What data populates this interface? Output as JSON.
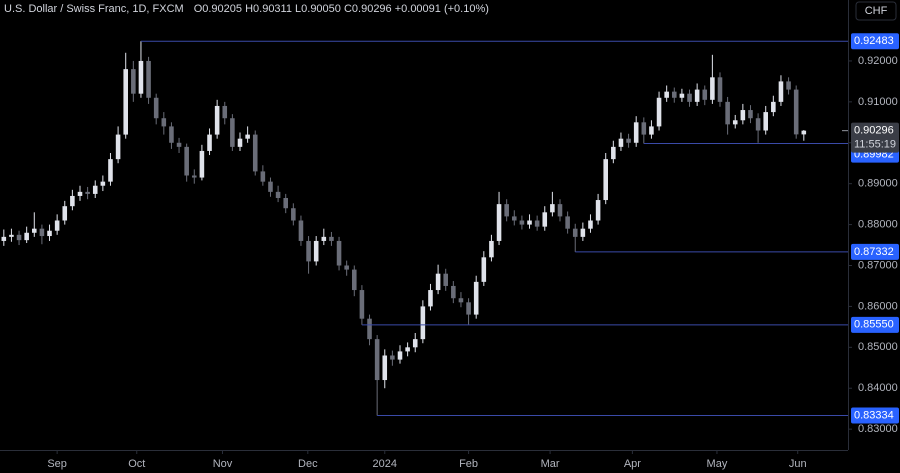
{
  "chart_data": {
    "type": "candlestick",
    "title": "U.S. Dollar / Swiss Franc, 1D, FXCM",
    "ohlc_text": "O0.90205 H0.90311 L0.90050 C0.90296 +0.00091 (+0.10%)",
    "currency": "CHF",
    "up_color": "#e0e3eb",
    "down_color": "#6a6d78",
    "level_color": "#2962ff",
    "candles": [
      [
        0.876,
        0.8788,
        0.8748,
        0.877
      ],
      [
        0.877,
        0.879,
        0.8758,
        0.8775
      ],
      [
        0.8775,
        0.8785,
        0.875,
        0.8762
      ],
      [
        0.8762,
        0.8795,
        0.8755,
        0.878
      ],
      [
        0.878,
        0.883,
        0.877,
        0.879
      ],
      [
        0.879,
        0.88,
        0.8752,
        0.8772
      ],
      [
        0.8772,
        0.88,
        0.876,
        0.8785
      ],
      [
        0.8785,
        0.8825,
        0.8775,
        0.881
      ],
      [
        0.881,
        0.8858,
        0.88,
        0.8845
      ],
      [
        0.8845,
        0.8885,
        0.8835,
        0.887
      ],
      [
        0.887,
        0.8895,
        0.8858,
        0.888
      ],
      [
        0.888,
        0.8892,
        0.8862,
        0.8875
      ],
      [
        0.8875,
        0.8908,
        0.8865,
        0.8895
      ],
      [
        0.8895,
        0.892,
        0.8882,
        0.8905
      ],
      [
        0.8905,
        0.8975,
        0.8895,
        0.896
      ],
      [
        0.896,
        0.904,
        0.895,
        0.902
      ],
      [
        0.902,
        0.922,
        0.901,
        0.918
      ],
      [
        0.918,
        0.92,
        0.91,
        0.912
      ],
      [
        0.912,
        0.92483,
        0.911,
        0.92
      ],
      [
        0.92,
        0.921,
        0.9095,
        0.911
      ],
      [
        0.911,
        0.912,
        0.9045,
        0.906
      ],
      [
        0.906,
        0.9075,
        0.902,
        0.904
      ],
      [
        0.904,
        0.905,
        0.8985,
        0.9
      ],
      [
        0.9,
        0.9012,
        0.8975,
        0.899
      ],
      [
        0.899,
        0.8998,
        0.8905,
        0.892
      ],
      [
        0.892,
        0.8935,
        0.89,
        0.8915
      ],
      [
        0.8915,
        0.8995,
        0.8908,
        0.898
      ],
      [
        0.898,
        0.9035,
        0.897,
        0.902
      ],
      [
        0.902,
        0.9105,
        0.901,
        0.909
      ],
      [
        0.909,
        0.91,
        0.9045,
        0.906
      ],
      [
        0.906,
        0.907,
        0.898,
        0.899
      ],
      [
        0.899,
        0.9025,
        0.898,
        0.901
      ],
      [
        0.901,
        0.904,
        0.9,
        0.902
      ],
      [
        0.902,
        0.903,
        0.892,
        0.893
      ],
      [
        0.893,
        0.8945,
        0.8895,
        0.8905
      ],
      [
        0.8905,
        0.8915,
        0.8868,
        0.888
      ],
      [
        0.888,
        0.8895,
        0.8855,
        0.8865
      ],
      [
        0.8865,
        0.8875,
        0.8828,
        0.884
      ],
      [
        0.884,
        0.8852,
        0.8798,
        0.881
      ],
      [
        0.881,
        0.8822,
        0.8748,
        0.876
      ],
      [
        0.876,
        0.8772,
        0.868,
        0.871
      ],
      [
        0.871,
        0.8772,
        0.87,
        0.876
      ],
      [
        0.876,
        0.879,
        0.875,
        0.877
      ],
      [
        0.877,
        0.8782,
        0.8748,
        0.876
      ],
      [
        0.876,
        0.877,
        0.8688,
        0.87
      ],
      [
        0.87,
        0.8712,
        0.8675,
        0.869
      ],
      [
        0.869,
        0.87,
        0.8625,
        0.864
      ],
      [
        0.864,
        0.8652,
        0.8555,
        0.857
      ],
      [
        0.857,
        0.858,
        0.8505,
        0.852
      ],
      [
        0.852,
        0.853,
        0.83334,
        0.842
      ],
      [
        0.842,
        0.8495,
        0.84,
        0.848
      ],
      [
        0.848,
        0.8492,
        0.8455,
        0.847
      ],
      [
        0.847,
        0.8505,
        0.846,
        0.849
      ],
      [
        0.849,
        0.8512,
        0.8478,
        0.85
      ],
      [
        0.85,
        0.8535,
        0.8488,
        0.852
      ],
      [
        0.852,
        0.8615,
        0.851,
        0.86
      ],
      [
        0.86,
        0.8655,
        0.859,
        0.864
      ],
      [
        0.864,
        0.8702,
        0.863,
        0.868
      ],
      [
        0.868,
        0.8692,
        0.8638,
        0.865
      ],
      [
        0.865,
        0.8662,
        0.8608,
        0.862
      ],
      [
        0.862,
        0.8635,
        0.8598,
        0.861
      ],
      [
        0.861,
        0.862,
        0.8555,
        0.858
      ],
      [
        0.858,
        0.8675,
        0.857,
        0.866
      ],
      [
        0.866,
        0.8735,
        0.865,
        0.872
      ],
      [
        0.872,
        0.8775,
        0.871,
        0.876
      ],
      [
        0.876,
        0.888,
        0.875,
        0.885
      ],
      [
        0.885,
        0.8862,
        0.8808,
        0.882
      ],
      [
        0.882,
        0.8835,
        0.8798,
        0.881
      ],
      [
        0.881,
        0.8822,
        0.8788,
        0.88
      ],
      [
        0.88,
        0.8825,
        0.879,
        0.881
      ],
      [
        0.881,
        0.8822,
        0.8785,
        0.8795
      ],
      [
        0.8795,
        0.8845,
        0.8785,
        0.883
      ],
      [
        0.883,
        0.888,
        0.882,
        0.885
      ],
      [
        0.885,
        0.8862,
        0.8808,
        0.882
      ],
      [
        0.882,
        0.8832,
        0.8778,
        0.879
      ],
      [
        0.879,
        0.8802,
        0.87332,
        0.877
      ],
      [
        0.877,
        0.8805,
        0.876,
        0.879
      ],
      [
        0.879,
        0.8825,
        0.878,
        0.881
      ],
      [
        0.881,
        0.8875,
        0.88,
        0.886
      ],
      [
        0.886,
        0.8975,
        0.885,
        0.896
      ],
      [
        0.896,
        0.9005,
        0.895,
        0.899
      ],
      [
        0.899,
        0.9025,
        0.898,
        0.901
      ],
      [
        0.901,
        0.9022,
        0.8988,
        0.9
      ],
      [
        0.9,
        0.9065,
        0.899,
        0.905
      ],
      [
        0.905,
        0.9062,
        0.89982,
        0.902
      ],
      [
        0.902,
        0.9055,
        0.901,
        0.904
      ],
      [
        0.904,
        0.9125,
        0.903,
        0.911
      ],
      [
        0.911,
        0.914,
        0.91,
        0.9125
      ],
      [
        0.9125,
        0.9135,
        0.9098,
        0.911
      ],
      [
        0.911,
        0.9132,
        0.91,
        0.912
      ],
      [
        0.912,
        0.913,
        0.9088,
        0.91
      ],
      [
        0.91,
        0.9145,
        0.909,
        0.913
      ],
      [
        0.913,
        0.914,
        0.9092,
        0.9105
      ],
      [
        0.9105,
        0.9215,
        0.9095,
        0.916
      ],
      [
        0.916,
        0.9172,
        0.9088,
        0.91
      ],
      [
        0.91,
        0.9112,
        0.902,
        0.9045
      ],
      [
        0.9045,
        0.9068,
        0.9035,
        0.9055
      ],
      [
        0.9055,
        0.9095,
        0.9045,
        0.908
      ],
      [
        0.908,
        0.9092,
        0.9048,
        0.906
      ],
      [
        0.906,
        0.9072,
        0.9,
        0.903
      ],
      [
        0.903,
        0.909,
        0.902,
        0.9075
      ],
      [
        0.9075,
        0.9115,
        0.9065,
        0.91
      ],
      [
        0.91,
        0.9165,
        0.909,
        0.915
      ],
      [
        0.915,
        0.916,
        0.9118,
        0.913
      ],
      [
        0.913,
        0.914,
        0.901,
        0.90205
      ],
      [
        0.90205,
        0.90311,
        0.9005,
        0.90296
      ]
    ],
    "xlim": [
      -0.5,
      110.8
    ],
    "xticks": [
      {
        "value": 7,
        "label": "Sep"
      },
      {
        "value": 17.45,
        "label": "Oct"
      },
      {
        "value": 28.7,
        "label": "Nov"
      },
      {
        "value": 39.9,
        "label": "Dec"
      },
      {
        "value": 50,
        "label": "2024"
      },
      {
        "value": 61,
        "label": "Feb"
      },
      {
        "value": 71.7,
        "label": "Mar"
      },
      {
        "value": 82.5,
        "label": "Apr"
      },
      {
        "value": 93.6,
        "label": "May"
      },
      {
        "value": 104.2,
        "label": "Jun"
      }
    ],
    "ylim": [
      0.8249,
      0.9349
    ],
    "yticks": [
      {
        "value": 0.83,
        "label": "0.83000"
      },
      {
        "value": 0.84,
        "label": "0.84000"
      },
      {
        "value": 0.85,
        "label": "0.85000"
      },
      {
        "value": 0.86,
        "label": "0.86000"
      },
      {
        "value": 0.87,
        "label": "0.87000"
      },
      {
        "value": 0.88,
        "label": "0.88000"
      },
      {
        "value": 0.89,
        "label": "0.89000"
      },
      {
        "value": 0.9,
        "label": "0.90000"
      },
      {
        "value": 0.91,
        "label": "0.91000"
      },
      {
        "value": 0.92,
        "label": "0.92000"
      }
    ],
    "levels": [
      {
        "value": 0.92483,
        "label": "0.92483"
      },
      {
        "value": 0.89982,
        "label": "0.89982"
      },
      {
        "value": 0.87332,
        "label": "0.87332"
      },
      {
        "value": 0.8555,
        "label": "0.85550"
      },
      {
        "value": 0.83334,
        "label": "0.83334"
      }
    ],
    "last_price": {
      "value": 0.90296,
      "label": "0.90296",
      "countdown": "11:55:19"
    }
  }
}
